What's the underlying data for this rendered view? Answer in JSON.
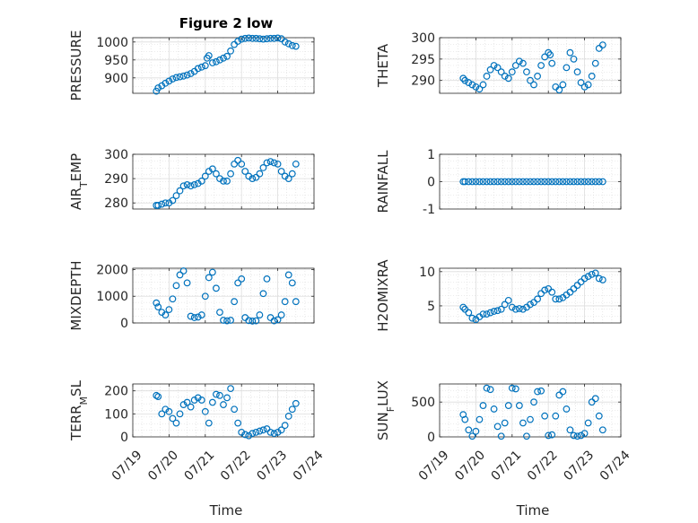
{
  "figure": {
    "title": "Figure 2 low",
    "marker_color": "#0072bd",
    "xlabel": "Time",
    "xticks": [
      "07/19",
      "07/20",
      "07/21",
      "07/22",
      "07/23",
      "07/24"
    ]
  },
  "chart_data": [
    {
      "type": "scatter",
      "name": "PRESSURE",
      "ylabel": "PRESSURE",
      "ylim": [
        857,
        1012
      ],
      "yticks": [
        900,
        950,
        1000
      ],
      "xlim": [
        0,
        5
      ],
      "grid": true,
      "x": [
        0.65,
        0.7,
        0.8,
        0.9,
        1.0,
        1.1,
        1.2,
        1.3,
        1.4,
        1.5,
        1.6,
        1.7,
        1.8,
        1.9,
        2.0,
        2.05,
        2.1,
        2.2,
        2.3,
        2.4,
        2.5,
        2.6,
        2.7,
        2.8,
        2.9,
        3.0,
        3.1,
        3.2,
        3.3,
        3.4,
        3.5,
        3.6,
        3.7,
        3.8,
        3.9,
        4.0,
        4.1,
        4.2,
        4.3,
        4.4,
        4.5
      ],
      "y": [
        863,
        872,
        878,
        885,
        891,
        897,
        901,
        903,
        905,
        908,
        912,
        918,
        926,
        930,
        934,
        955,
        962,
        942,
        945,
        950,
        955,
        960,
        975,
        993,
        1002,
        1008,
        1010,
        1011,
        1010,
        1010,
        1009,
        1008,
        1009,
        1010,
        1010,
        1011,
        1009,
        1000,
        995,
        990,
        988
      ]
    },
    {
      "type": "scatter",
      "name": "THETA",
      "ylabel": "THETA",
      "ylim": [
        287,
        300
      ],
      "yticks": [
        290,
        295,
        300
      ],
      "xlim": [
        0,
        5
      ],
      "grid": true,
      "x": [
        0.65,
        0.7,
        0.8,
        0.9,
        1.0,
        1.1,
        1.2,
        1.3,
        1.4,
        1.5,
        1.6,
        1.7,
        1.8,
        1.9,
        2.0,
        2.1,
        2.2,
        2.3,
        2.4,
        2.5,
        2.6,
        2.7,
        2.8,
        2.9,
        3.0,
        3.05,
        3.1,
        3.2,
        3.3,
        3.4,
        3.5,
        3.6,
        3.7,
        3.8,
        3.9,
        4.0,
        4.1,
        4.2,
        4.3,
        4.4,
        4.5
      ],
      "y": [
        290.5,
        290,
        289.5,
        289,
        288.5,
        288,
        289,
        291,
        292.5,
        293.5,
        293,
        292,
        291,
        290.5,
        292,
        293.5,
        294.5,
        294,
        292,
        290,
        289,
        291,
        293.5,
        295.5,
        296.5,
        296,
        294,
        288.5,
        287.8,
        289,
        293,
        296.5,
        295,
        292,
        289.5,
        288.5,
        289,
        291,
        294,
        297.5,
        298.3
      ]
    },
    {
      "type": "scatter",
      "name": "AIR_TEMP",
      "ylabel": "AIR_TEMP",
      "ylim": [
        277.5,
        300
      ],
      "yticks": [
        280,
        290,
        300
      ],
      "xlim": [
        0,
        5
      ],
      "grid": true,
      "x": [
        0.65,
        0.7,
        0.8,
        0.9,
        1.0,
        1.1,
        1.2,
        1.3,
        1.4,
        1.5,
        1.6,
        1.7,
        1.8,
        1.9,
        2.0,
        2.1,
        2.2,
        2.3,
        2.4,
        2.5,
        2.6,
        2.7,
        2.8,
        2.9,
        3.0,
        3.1,
        3.2,
        3.3,
        3.4,
        3.5,
        3.6,
        3.7,
        3.8,
        3.9,
        4.0,
        4.1,
        4.2,
        4.3,
        4.4,
        4.5
      ],
      "y": [
        279,
        279,
        279.5,
        280,
        280,
        281,
        283,
        285,
        287,
        287.5,
        287,
        287.5,
        288,
        289,
        291,
        293,
        294,
        292,
        290,
        289,
        289,
        292,
        296,
        297.5,
        296,
        293,
        291,
        290,
        290.5,
        292,
        294.5,
        296.5,
        297,
        296.5,
        296,
        293,
        291,
        290,
        292,
        296
      ]
    },
    {
      "type": "scatter",
      "name": "RAINFALL",
      "ylabel": "RAINFALL",
      "ylim": [
        -1,
        1
      ],
      "yticks": [
        -1,
        0,
        1
      ],
      "xlim": [
        0,
        5
      ],
      "grid": true,
      "x": [
        0.65,
        0.7,
        0.8,
        0.9,
        1.0,
        1.1,
        1.2,
        1.3,
        1.4,
        1.5,
        1.6,
        1.7,
        1.8,
        1.9,
        2.0,
        2.1,
        2.2,
        2.3,
        2.4,
        2.5,
        2.6,
        2.7,
        2.8,
        2.9,
        3.0,
        3.1,
        3.2,
        3.3,
        3.4,
        3.5,
        3.6,
        3.7,
        3.8,
        3.9,
        4.0,
        4.1,
        4.2,
        4.3,
        4.4,
        4.5
      ],
      "y": [
        0,
        0,
        0,
        0,
        0,
        0,
        0,
        0,
        0,
        0,
        0,
        0,
        0,
        0,
        0,
        0,
        0,
        0,
        0,
        0,
        0,
        0,
        0,
        0,
        0,
        0,
        0,
        0,
        0,
        0,
        0,
        0,
        0,
        0,
        0,
        0,
        0,
        0,
        0,
        0
      ]
    },
    {
      "type": "scatter",
      "name": "MIXDEPTH",
      "ylabel": "MIXDEPTH",
      "ylim": [
        0,
        2050
      ],
      "yticks": [
        0,
        1000,
        2000
      ],
      "xlim": [
        0,
        5
      ],
      "grid": true,
      "x": [
        0.65,
        0.7,
        0.8,
        0.9,
        1.0,
        1.1,
        1.2,
        1.3,
        1.4,
        1.5,
        1.6,
        1.7,
        1.8,
        1.9,
        2.0,
        2.1,
        2.2,
        2.3,
        2.4,
        2.5,
        2.6,
        2.7,
        2.8,
        2.9,
        3.0,
        3.1,
        3.2,
        3.3,
        3.4,
        3.5,
        3.6,
        3.7,
        3.8,
        3.9,
        4.0,
        4.1,
        4.2,
        4.3,
        4.4,
        4.5
      ],
      "y": [
        750,
        600,
        400,
        300,
        500,
        900,
        1400,
        1800,
        1950,
        1500,
        250,
        200,
        220,
        300,
        1000,
        1700,
        1900,
        1300,
        400,
        100,
        80,
        100,
        800,
        1500,
        1650,
        200,
        90,
        70,
        80,
        300,
        1100,
        1650,
        200,
        80,
        120,
        300,
        800,
        1800,
        1500,
        800
      ]
    },
    {
      "type": "scatter",
      "name": "H2OMIXRA",
      "ylabel": "H2OMIXRA",
      "ylim": [
        2.5,
        10.5
      ],
      "yticks": [
        5,
        10
      ],
      "xlim": [
        0,
        5
      ],
      "grid": true,
      "x": [
        0.65,
        0.7,
        0.8,
        0.9,
        1.0,
        1.1,
        1.2,
        1.3,
        1.4,
        1.5,
        1.6,
        1.7,
        1.8,
        1.9,
        2.0,
        2.1,
        2.2,
        2.3,
        2.4,
        2.5,
        2.6,
        2.7,
        2.8,
        2.9,
        3.0,
        3.1,
        3.2,
        3.3,
        3.4,
        3.5,
        3.6,
        3.7,
        3.8,
        3.9,
        4.0,
        4.1,
        4.2,
        4.3,
        4.4,
        4.5
      ],
      "y": [
        4.8,
        4.5,
        4.0,
        3.2,
        3.0,
        3.4,
        3.8,
        3.8,
        4.0,
        4.2,
        4.3,
        4.5,
        5.2,
        5.8,
        4.8,
        4.5,
        4.6,
        4.5,
        4.8,
        5.2,
        5.5,
        6.0,
        6.8,
        7.3,
        7.5,
        7.0,
        6.0,
        6.0,
        6.2,
        6.6,
        7.0,
        7.5,
        8.0,
        8.5,
        9.0,
        9.3,
        9.6,
        9.8,
        9.0,
        8.8
      ]
    },
    {
      "type": "scatter",
      "name": "TERR_MSL",
      "ylabel": "TERR_MSL",
      "ylim": [
        0,
        230
      ],
      "yticks": [
        0,
        100,
        200
      ],
      "xlim": [
        0,
        5
      ],
      "grid": true,
      "x": [
        0.65,
        0.7,
        0.8,
        0.9,
        1.0,
        1.1,
        1.2,
        1.3,
        1.4,
        1.5,
        1.6,
        1.7,
        1.8,
        1.9,
        2.0,
        2.1,
        2.2,
        2.3,
        2.4,
        2.5,
        2.6,
        2.7,
        2.8,
        2.9,
        3.0,
        3.1,
        3.2,
        3.3,
        3.4,
        3.5,
        3.6,
        3.7,
        3.8,
        3.9,
        4.0,
        4.1,
        4.2,
        4.3,
        4.4,
        4.5
      ],
      "y": [
        180,
        175,
        100,
        120,
        110,
        80,
        60,
        100,
        140,
        150,
        130,
        160,
        170,
        160,
        110,
        60,
        150,
        185,
        180,
        140,
        170,
        210,
        120,
        60,
        20,
        10,
        5,
        15,
        20,
        25,
        30,
        35,
        20,
        15,
        20,
        30,
        50,
        90,
        120,
        145
      ]
    },
    {
      "type": "scatter",
      "name": "SUN_FLUX",
      "ylabel": "SUN_FLUX",
      "ylim": [
        0,
        760
      ],
      "yticks": [
        0,
        500
      ],
      "xlim": [
        0,
        5
      ],
      "grid": true,
      "x": [
        0.65,
        0.7,
        0.8,
        0.9,
        1.0,
        1.1,
        1.2,
        1.3,
        1.4,
        1.5,
        1.6,
        1.7,
        1.8,
        1.9,
        2.0,
        2.1,
        2.2,
        2.3,
        2.4,
        2.5,
        2.6,
        2.7,
        2.8,
        2.9,
        3.0,
        3.1,
        3.2,
        3.3,
        3.4,
        3.5,
        3.6,
        3.7,
        3.8,
        3.9,
        4.0,
        4.1,
        4.2,
        4.3,
        4.4,
        4.5
      ],
      "y": [
        320,
        250,
        100,
        10,
        80,
        250,
        450,
        700,
        680,
        400,
        150,
        10,
        200,
        450,
        700,
        690,
        450,
        200,
        10,
        250,
        500,
        650,
        660,
        300,
        20,
        30,
        300,
        600,
        650,
        400,
        100,
        20,
        10,
        20,
        50,
        200,
        500,
        550,
        300,
        100
      ]
    }
  ]
}
